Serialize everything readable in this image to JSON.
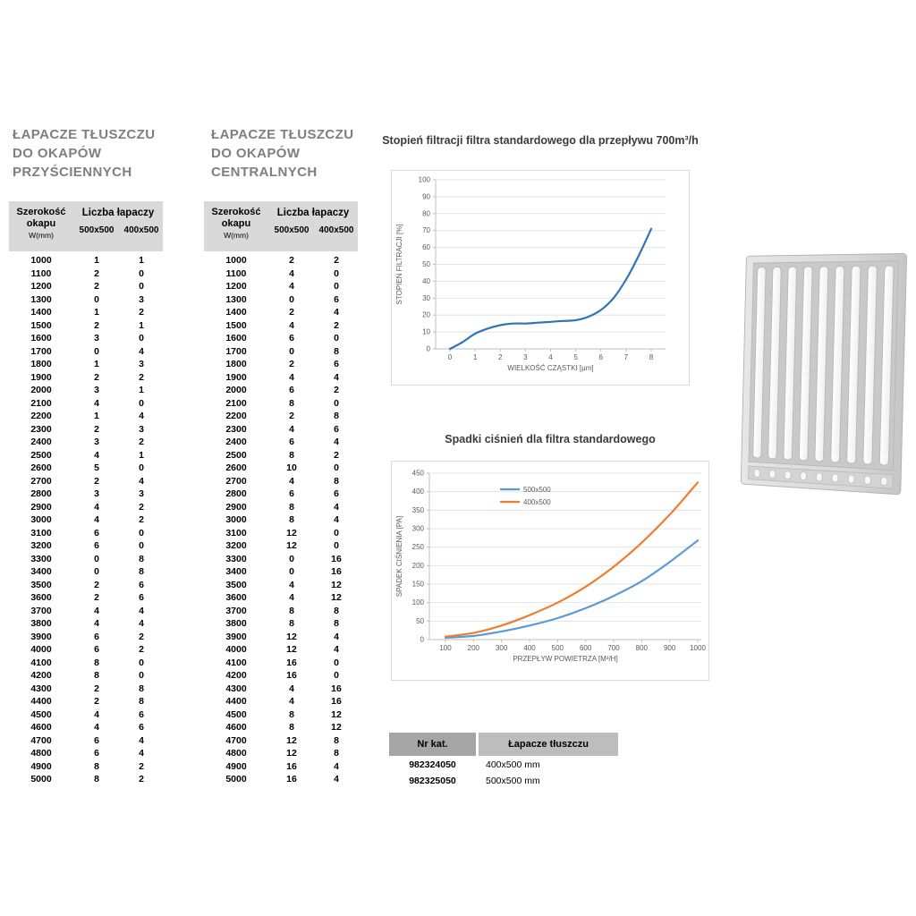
{
  "left_table": {
    "title": [
      "ŁAPACZE TŁUSZCZU",
      "DO OKAPÓW",
      "PRZYŚCIENNYCH"
    ],
    "header": {
      "width_line1": "Szerokość",
      "width_line2": "okapu",
      "width_line3": "W(mm)",
      "group": "Liczba łapaczy",
      "size1": "500x500",
      "size2": "400x500"
    },
    "rows": [
      [
        "1000",
        "1",
        "1"
      ],
      [
        "1100",
        "2",
        "0"
      ],
      [
        "1200",
        "2",
        "0"
      ],
      [
        "1300",
        "0",
        "3"
      ],
      [
        "1400",
        "1",
        "2"
      ],
      [
        "1500",
        "2",
        "1"
      ],
      [
        "1600",
        "3",
        "0"
      ],
      [
        "1700",
        "0",
        "4"
      ],
      [
        "1800",
        "1",
        "3"
      ],
      [
        "1900",
        "2",
        "2"
      ],
      [
        "2000",
        "3",
        "1"
      ],
      [
        "2100",
        "4",
        "0"
      ],
      [
        "2200",
        "1",
        "4"
      ],
      [
        "2300",
        "2",
        "3"
      ],
      [
        "2400",
        "3",
        "2"
      ],
      [
        "2500",
        "4",
        "1"
      ],
      [
        "2600",
        "5",
        "0"
      ],
      [
        "2700",
        "2",
        "4"
      ],
      [
        "2800",
        "3",
        "3"
      ],
      [
        "2900",
        "4",
        "2"
      ],
      [
        "3000",
        "4",
        "2"
      ],
      [
        "3100",
        "6",
        "0"
      ],
      [
        "3200",
        "6",
        "0"
      ],
      [
        "3300",
        "0",
        "8"
      ],
      [
        "3400",
        "0",
        "8"
      ],
      [
        "3500",
        "2",
        "6"
      ],
      [
        "3600",
        "2",
        "6"
      ],
      [
        "3700",
        "4",
        "4"
      ],
      [
        "3800",
        "4",
        "4"
      ],
      [
        "3900",
        "6",
        "2"
      ],
      [
        "4000",
        "6",
        "2"
      ],
      [
        "4100",
        "8",
        "0"
      ],
      [
        "4200",
        "8",
        "0"
      ],
      [
        "4300",
        "2",
        "8"
      ],
      [
        "4400",
        "2",
        "8"
      ],
      [
        "4500",
        "4",
        "6"
      ],
      [
        "4600",
        "4",
        "6"
      ],
      [
        "4700",
        "6",
        "4"
      ],
      [
        "4800",
        "6",
        "4"
      ],
      [
        "4900",
        "8",
        "2"
      ],
      [
        "5000",
        "8",
        "2"
      ]
    ]
  },
  "center_table": {
    "title": [
      "ŁAPACZE TŁUSZCZU",
      "DO OKAPÓW",
      "CENTRALNYCH"
    ],
    "header": {
      "width_line1": "Szerokość",
      "width_line2": "okapu",
      "width_line3": "W(mm)",
      "group": "Liczba łapaczy",
      "size1": "500x500",
      "size2": "400x500"
    },
    "rows": [
      [
        "1000",
        "2",
        "2"
      ],
      [
        "1100",
        "4",
        "0"
      ],
      [
        "1200",
        "4",
        "0"
      ],
      [
        "1300",
        "0",
        "6"
      ],
      [
        "1400",
        "2",
        "4"
      ],
      [
        "1500",
        "4",
        "2"
      ],
      [
        "1600",
        "6",
        "0"
      ],
      [
        "1700",
        "0",
        "8"
      ],
      [
        "1800",
        "2",
        "6"
      ],
      [
        "1900",
        "4",
        "4"
      ],
      [
        "2000",
        "6",
        "2"
      ],
      [
        "2100",
        "8",
        "0"
      ],
      [
        "2200",
        "2",
        "8"
      ],
      [
        "2300",
        "4",
        "6"
      ],
      [
        "2400",
        "6",
        "4"
      ],
      [
        "2500",
        "8",
        "2"
      ],
      [
        "2600",
        "10",
        "0"
      ],
      [
        "2700",
        "4",
        "8"
      ],
      [
        "2800",
        "6",
        "6"
      ],
      [
        "2900",
        "8",
        "4"
      ],
      [
        "3000",
        "8",
        "4"
      ],
      [
        "3100",
        "12",
        "0"
      ],
      [
        "3200",
        "12",
        "0"
      ],
      [
        "3300",
        "0",
        "16"
      ],
      [
        "3400",
        "0",
        "16"
      ],
      [
        "3500",
        "4",
        "12"
      ],
      [
        "3600",
        "4",
        "12"
      ],
      [
        "3700",
        "8",
        "8"
      ],
      [
        "3800",
        "8",
        "8"
      ],
      [
        "3900",
        "12",
        "4"
      ],
      [
        "4000",
        "12",
        "4"
      ],
      [
        "4100",
        "16",
        "0"
      ],
      [
        "4200",
        "16",
        "0"
      ],
      [
        "4300",
        "4",
        "16"
      ],
      [
        "4400",
        "4",
        "16"
      ],
      [
        "4500",
        "8",
        "12"
      ],
      [
        "4600",
        "8",
        "12"
      ],
      [
        "4700",
        "12",
        "8"
      ],
      [
        "4800",
        "12",
        "8"
      ],
      [
        "4900",
        "16",
        "4"
      ],
      [
        "5000",
        "16",
        "4"
      ]
    ]
  },
  "chart_data": [
    {
      "type": "line",
      "title": "Stopień filtracji filtra standardowego dla przepływu 700m³/h",
      "xlabel": "WIELKOŚĆ CZĄSTKI [µm]",
      "ylabel": "STOPIEŃ FILTRACJI [%]",
      "xlim": [
        0,
        8
      ],
      "ylim": [
        0,
        100
      ],
      "ytick_step": 10,
      "xticks": [
        0,
        1,
        2,
        3,
        4,
        5,
        6,
        7,
        8
      ],
      "grid": "horizontal",
      "legend": false,
      "series": [
        {
          "name": "filtracja",
          "color": "#2e75b6",
          "x": [
            0,
            0.5,
            1,
            1.5,
            2,
            2.5,
            3,
            3.5,
            4,
            4.5,
            5,
            5.5,
            6,
            6.5,
            7,
            7.5,
            8
          ],
          "y": [
            0,
            4,
            9,
            12,
            14,
            15,
            15,
            15.5,
            16,
            16.5,
            17,
            19,
            23,
            30,
            41,
            55,
            71
          ]
        }
      ]
    },
    {
      "type": "line",
      "title": "Spadki ciśnień dla filtra standardowego",
      "xlabel": "PRZEPŁYW POWIETRZA [M³/H]",
      "ylabel": "SPADEK CIŚNIENIA [PA]",
      "xlim": [
        100,
        1000
      ],
      "ylim": [
        0,
        450
      ],
      "ytick_step": 50,
      "xticks": [
        100,
        200,
        300,
        400,
        500,
        600,
        700,
        800,
        900,
        1000
      ],
      "grid": "horizontal",
      "legend": true,
      "series": [
        {
          "name": "500x500",
          "color": "#5b9bd5",
          "x": [
            100,
            200,
            300,
            400,
            500,
            600,
            700,
            800,
            900,
            1000
          ],
          "y": [
            5,
            10,
            22,
            38,
            58,
            85,
            118,
            158,
            210,
            268
          ]
        },
        {
          "name": "400x500",
          "color": "#ed7d31",
          "x": [
            100,
            200,
            300,
            400,
            500,
            600,
            700,
            800,
            900,
            1000
          ],
          "y": [
            8,
            18,
            38,
            66,
            100,
            143,
            197,
            262,
            338,
            425
          ]
        }
      ]
    }
  ],
  "catalog": {
    "header": [
      "Nr kat.",
      "Łapacze tłuszczu"
    ],
    "rows": [
      [
        "982324050",
        "400x500 mm"
      ],
      [
        "982325050",
        "500x500 mm"
      ]
    ]
  },
  "photo": {
    "name": "grease-filter-baffle"
  }
}
